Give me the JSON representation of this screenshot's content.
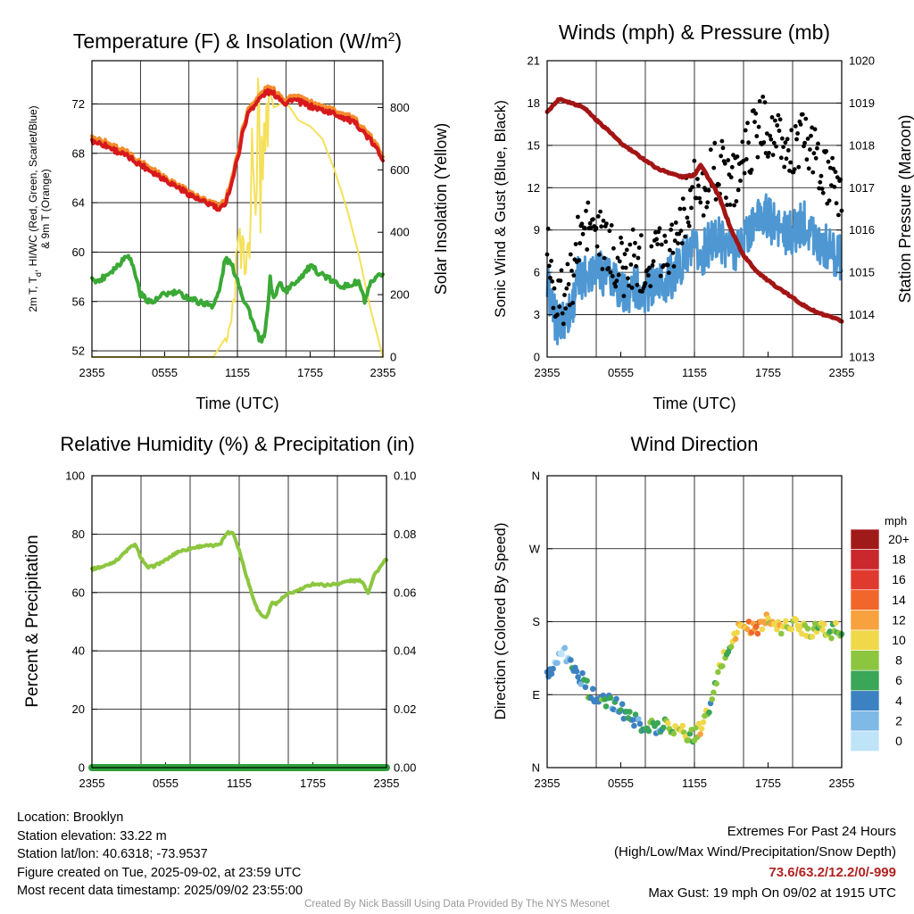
{
  "panels": {
    "temp": {
      "title": "Temperature (F) & Insolation (W/m",
      "title_sup": "2",
      "title_end": ")",
      "ylabel_left_1": "2m T, T",
      "ylabel_left_1_sub": "d",
      "ylabel_left_1_end": ", HI/WC (Red, Green, Scarlet/Blue)",
      "ylabel_left_2": "& 9m T (Orange)",
      "ylabel_right": "Solar Insolation (Yellow)",
      "xlabel": "Time (UTC)"
    },
    "wind": {
      "title": "Winds (mph) & Pressure (mb)",
      "ylabel_left": "Sonic Wind & Gust (Blue, Black)",
      "ylabel_right": "Station Pressure (Maroon)",
      "xlabel": "Time (UTC)"
    },
    "rh": {
      "title": "Relative Humidity (%) & Precipitation (in)",
      "ylabel_left": "Percent & Precipitation"
    },
    "dir": {
      "title": "Wind Direction",
      "ylabel_left": "Direction (Colored By Speed)",
      "legend_title": "mph"
    }
  },
  "chart_data": [
    {
      "type": "line",
      "title": "Temperature (F) & Insolation (W/m2)",
      "xlabel": "Time (UTC)",
      "x_ticks": [
        "2355",
        "0555",
        "1155",
        "1755",
        "2355"
      ],
      "xlim": [
        0,
        24
      ],
      "ylim": [
        51.5,
        75.5
      ],
      "y_ticks": [
        52,
        56,
        60,
        64,
        68,
        72
      ],
      "y2lim": [
        0,
        950
      ],
      "y2_ticks": [
        0,
        200,
        400,
        600,
        800
      ],
      "series": [
        {
          "key": "temp2m",
          "color": "#d7191c",
          "x": [
            0,
            1,
            2,
            3,
            4,
            5,
            6,
            7,
            8,
            9,
            10,
            10.5,
            11,
            11.5,
            12,
            12.5,
            13,
            13.5,
            14,
            14.5,
            15,
            15.5,
            16,
            16.5,
            17,
            18,
            19,
            20,
            21,
            22,
            23,
            24
          ],
          "y": [
            69,
            68.7,
            68.2,
            67.7,
            67.1,
            66.5,
            65.9,
            65.3,
            64.7,
            64.1,
            63.8,
            63.3,
            64.0,
            65.5,
            67.5,
            70.0,
            71.5,
            72.0,
            72.6,
            73.0,
            72.8,
            72.5,
            72.0,
            72.4,
            72.2,
            71.8,
            71.5,
            71.2,
            70.8,
            70.2,
            69.0,
            67.6
          ]
        },
        {
          "key": "temp9m",
          "color": "#f48c2c",
          "x": [
            0,
            1,
            2,
            3,
            4,
            5,
            6,
            7,
            8,
            9,
            10,
            10.5,
            11,
            11.5,
            12,
            12.5,
            13,
            13.5,
            14,
            14.5,
            15,
            15.5,
            16,
            16.5,
            17,
            18,
            19,
            20,
            21,
            22,
            23,
            24
          ],
          "y": [
            69.3,
            69.0,
            68.5,
            68.0,
            67.3,
            66.8,
            66.1,
            65.5,
            64.9,
            64.3,
            64.0,
            63.6,
            64.3,
            65.8,
            67.8,
            70.3,
            71.8,
            72.3,
            72.9,
            73.3,
            73.1,
            72.8,
            72.3,
            72.7,
            72.5,
            72.1,
            71.8,
            71.5,
            71.1,
            70.5,
            69.3,
            67.9
          ]
        },
        {
          "key": "dewpoint",
          "color": "#3aa935",
          "x": [
            0,
            0.5,
            1,
            2,
            3,
            3.5,
            4,
            4.5,
            5,
            6,
            7,
            8,
            9,
            10,
            10.5,
            11,
            11.5,
            12,
            12.5,
            13,
            13.5,
            14,
            14.3,
            14.7,
            15,
            15.5,
            16,
            17,
            18,
            19,
            20,
            21,
            22,
            22.5,
            23,
            24
          ],
          "y": [
            58,
            57.6,
            58.0,
            58.8,
            59.9,
            58.5,
            56.6,
            56.2,
            55.9,
            56.6,
            56.7,
            56.3,
            55.9,
            55.7,
            56.8,
            59.5,
            59.0,
            57.8,
            56.2,
            55.2,
            53.6,
            52.7,
            53.5,
            57.8,
            56.2,
            57.5,
            56.8,
            57.8,
            58.8,
            58.2,
            57.5,
            57.2,
            57.6,
            56.0,
            57.4,
            58.3
          ]
        },
        {
          "key": "insolation",
          "color": "#f5e05a",
          "axis": "y2",
          "x": [
            0,
            10,
            11,
            11.5,
            12,
            12.5,
            13,
            13.3,
            13.6,
            14,
            14.5,
            15,
            16,
            17,
            18,
            19,
            20,
            21,
            22,
            23,
            24
          ],
          "y": [
            0,
            0,
            60,
            180,
            380,
            520,
            690,
            780,
            930,
            860,
            880,
            800,
            820,
            760,
            740,
            700,
            600,
            480,
            330,
            150,
            0
          ]
        }
      ]
    },
    {
      "type": "scatter",
      "title": "Winds (mph) & Pressure (mb)",
      "xlabel": "Time (UTC)",
      "x_ticks": [
        "2355",
        "0555",
        "1155",
        "1755",
        "2355"
      ],
      "xlim": [
        0,
        24
      ],
      "ylim": [
        0,
        21
      ],
      "y_ticks": [
        0,
        3,
        6,
        9,
        12,
        15,
        18,
        21
      ],
      "y2lim": [
        1013,
        1020
      ],
      "y2_ticks": [
        1013,
        1014,
        1015,
        1016,
        1017,
        1018,
        1019,
        1020
      ],
      "series": [
        {
          "key": "pressure",
          "color": "#a31515",
          "axis": "y2",
          "x": [
            0,
            0.5,
            1,
            1.5,
            2,
            3,
            4,
            5,
            6,
            7,
            8,
            9,
            10,
            11,
            12,
            12.5,
            13,
            14,
            15,
            16,
            17,
            18,
            19,
            20,
            21,
            22,
            23,
            24
          ],
          "y": [
            1018.8,
            1018.95,
            1019.1,
            1019.05,
            1019.0,
            1018.9,
            1018.6,
            1018.35,
            1018.05,
            1017.85,
            1017.65,
            1017.45,
            1017.35,
            1017.25,
            1017.3,
            1017.55,
            1017.3,
            1016.8,
            1016.0,
            1015.4,
            1015.05,
            1014.8,
            1014.6,
            1014.4,
            1014.2,
            1014.05,
            1013.95,
            1013.85
          ]
        },
        {
          "key": "wind",
          "color": "#4e97d2",
          "x": [
            0,
            0.5,
            1,
            1.5,
            2,
            2.5,
            3,
            3.5,
            4,
            4.5,
            5,
            5.5,
            6,
            6.5,
            7,
            7.5,
            8,
            8.5,
            9,
            9.5,
            10,
            10.5,
            11,
            11.5,
            12,
            12.5,
            13,
            13.5,
            14,
            14.5,
            15,
            15.5,
            16,
            16.5,
            17,
            17.5,
            18,
            18.5,
            19,
            19.5,
            20,
            20.5,
            21,
            21.5,
            22,
            22.5,
            23,
            23.5,
            24
          ],
          "y": [
            5.5,
            3.0,
            2.2,
            2.8,
            3.5,
            5.5,
            5.8,
            6.2,
            6.5,
            6.0,
            5.6,
            5.2,
            4.8,
            4.5,
            5.0,
            4.8,
            4.6,
            5.0,
            5.5,
            5.2,
            5.6,
            6.0,
            6.8,
            7.2,
            7.5,
            7.0,
            7.8,
            8.2,
            8.4,
            8.0,
            7.6,
            7.8,
            8.4,
            9.0,
            9.6,
            10.2,
            9.8,
            9.4,
            9.0,
            8.6,
            8.8,
            9.2,
            9.6,
            9.0,
            8.4,
            8.0,
            7.6,
            7.2,
            7.0
          ]
        },
        {
          "key": "gust",
          "color": "#000000",
          "x": [
            0,
            0.5,
            1,
            1.5,
            2,
            2.5,
            3,
            3.5,
            4,
            4.5,
            5,
            5.5,
            6,
            6.5,
            7,
            7.5,
            8,
            8.5,
            9,
            9.5,
            10,
            10.5,
            11,
            11.5,
            12,
            12.5,
            13,
            13.5,
            14,
            14.5,
            15,
            15.5,
            16,
            16.5,
            17,
            17.5,
            18,
            18.5,
            19,
            19.5,
            20,
            20.5,
            21,
            21.5,
            22,
            22.5,
            23,
            23.5,
            24
          ],
          "y": [
            8.5,
            5.0,
            4.0,
            4.2,
            5.5,
            8.0,
            9.0,
            9.5,
            8.8,
            8.0,
            7.5,
            7.0,
            6.5,
            6.2,
            7.0,
            6.8,
            6.6,
            7.2,
            7.8,
            7.5,
            8.0,
            8.8,
            10.0,
            11.0,
            12.0,
            11.5,
            12.5,
            13.0,
            13.4,
            13.0,
            12.6,
            13.0,
            14.2,
            15.0,
            15.8,
            16.6,
            16.2,
            15.6,
            15.0,
            14.4,
            14.6,
            15.0,
            15.6,
            14.8,
            13.8,
            13.0,
            12.2,
            11.8,
            11.4
          ]
        }
      ]
    },
    {
      "type": "line",
      "title": "Relative Humidity (%) & Precipitation (in)",
      "x_ticks": [
        "2355",
        "0555",
        "1155",
        "1755",
        "2355"
      ],
      "xlim": [
        0,
        24
      ],
      "ylim": [
        0,
        100
      ],
      "y_ticks": [
        0,
        20,
        40,
        60,
        80,
        100
      ],
      "y2lim": [
        0,
        0.1
      ],
      "y2_ticks": [
        "0.00",
        "0.02",
        "0.04",
        "0.06",
        "0.08",
        "0.10"
      ],
      "series": [
        {
          "key": "rh",
          "color": "#8cc63f",
          "x": [
            0,
            1,
            2,
            3,
            3.5,
            4,
            4.5,
            5,
            6,
            7,
            8,
            9,
            10,
            10.5,
            11,
            11.5,
            12,
            12.5,
            13,
            13.5,
            14,
            14.3,
            14.7,
            15,
            15.5,
            16,
            17,
            18,
            19,
            20,
            21,
            22,
            22.5,
            23,
            24
          ],
          "y": [
            68,
            69,
            71,
            75,
            76.5,
            72,
            68.5,
            69,
            71,
            74,
            75,
            76,
            76,
            77,
            80.5,
            80.5,
            74.5,
            67,
            60,
            54,
            51.5,
            52,
            57,
            56,
            58,
            59.5,
            61,
            63,
            62.5,
            63,
            64,
            64,
            60,
            66,
            71.5
          ]
        },
        {
          "key": "precip",
          "color": "#2e9e3c",
          "axis": "y2",
          "x": [
            0,
            24
          ],
          "y": [
            0,
            0
          ]
        }
      ]
    },
    {
      "type": "scatter",
      "title": "Wind Direction",
      "x_ticks": [
        "2355",
        "0555",
        "1155",
        "1755",
        "2355"
      ],
      "xlim": [
        0,
        24
      ],
      "ylim": [
        0,
        360
      ],
      "y_ticks": [
        "N",
        "E",
        "S",
        "W",
        "N"
      ],
      "legend": {
        "title": "mph",
        "labels": [
          "20+",
          "18",
          "16",
          "14",
          "12",
          "10",
          "8",
          "6",
          "4",
          "2",
          "0"
        ],
        "colors": [
          "#a11a1a",
          "#c9282c",
          "#e03a2f",
          "#f0662b",
          "#f7a13f",
          "#f0d84a",
          "#8cc63f",
          "#3aa657",
          "#3c82c2",
          "#7fb9e6",
          "#bfe3f7"
        ],
        "placement": "right"
      },
      "series": [
        {
          "key": "direction",
          "x": [
            0,
            0.3,
            0.6,
            1,
            1.3,
            1.6,
            2,
            2.3,
            2.6,
            3,
            3.3,
            3.6,
            4,
            4.5,
            5,
            5.5,
            6,
            6.5,
            7,
            7.5,
            8,
            8.5,
            9,
            9.5,
            10,
            10.5,
            11,
            11.5,
            12,
            12.5,
            13,
            13.5,
            14,
            14.5,
            15,
            15.5,
            16,
            16.5,
            17,
            17.5,
            18,
            18.5,
            19,
            19.5,
            20,
            20.5,
            21,
            21.5,
            22,
            22.5,
            23,
            23.5,
            24
          ],
          "y": [
            122,
            118,
            130,
            142,
            150,
            134,
            126,
            120,
            112,
            108,
            96,
            92,
            84,
            80,
            82,
            78,
            72,
            66,
            58,
            55,
            52,
            51,
            50,
            53,
            52,
            48,
            44,
            40,
            38,
            50,
            64,
            84,
            120,
            140,
            152,
            170,
            176,
            172,
            170,
            178,
            182,
            176,
            170,
            175,
            178,
            174,
            172,
            168,
            175,
            170,
            166,
            172,
            170
          ],
          "speed": [
            4,
            4,
            2,
            2,
            2,
            2,
            4,
            4,
            4,
            4,
            6,
            4,
            4,
            6,
            6,
            4,
            4,
            6,
            4,
            4,
            6,
            6,
            4,
            6,
            8,
            8,
            10,
            6,
            8,
            10,
            8,
            6,
            10,
            8,
            8,
            12,
            10,
            12,
            14,
            12,
            10,
            12,
            10,
            8,
            10,
            10,
            8,
            10,
            8,
            10,
            8,
            8,
            6
          ]
        }
      ]
    }
  ],
  "info_left": {
    "location": "Location: Brooklyn",
    "elevation": "Station elevation: 33.22 m",
    "latlon": "Station lat/lon: 40.6318; -73.9537",
    "created": "Figure created on Tue, 2025-09-02, at 23:59 UTC",
    "recent": "Most recent data timestamp: 2025/09/02 23:55:00"
  },
  "info_right": {
    "header": "Extremes For Past 24 Hours",
    "sub": "(High/Low/Max Wind/Precipitation/Snow Depth)",
    "values": "73.6/63.2/12.2/0/-999",
    "gust": "Max Gust: 19 mph On 09/02 at 1915 UTC"
  },
  "credit": "Created By Nick Bassill Using Data Provided By The NYS Mesonet"
}
